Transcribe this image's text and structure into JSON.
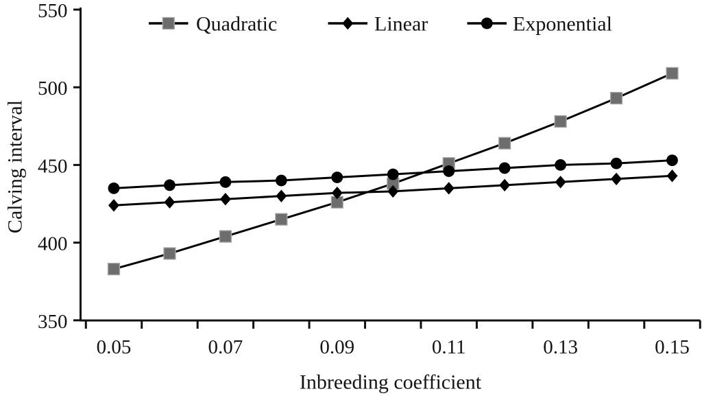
{
  "chart_data": {
    "type": "line",
    "title": "",
    "xlabel": "Inbreeding coefficient",
    "ylabel": "Calving interval",
    "x": [
      0.05,
      0.06,
      0.07,
      0.08,
      0.09,
      0.1,
      0.11,
      0.12,
      0.13,
      0.14,
      0.15
    ],
    "xtick_labels": [
      "0.05",
      "0.07",
      "0.09",
      "0.11",
      "0.13",
      "0.15"
    ],
    "yticks": [
      350,
      400,
      450,
      500,
      550
    ],
    "ylim": [
      350,
      550
    ],
    "grid": false,
    "legend_position": "top-center-inside",
    "line_color": "#000000",
    "series": [
      {
        "name": "Quadratic",
        "marker": "square",
        "marker_fill": "#6d6d6d",
        "marker_stroke": "#ababab",
        "values": [
          383,
          393,
          404,
          415,
          426,
          438,
          451,
          464,
          478,
          493,
          509
        ]
      },
      {
        "name": "Linear",
        "marker": "diamond",
        "marker_fill": "#000000",
        "marker_stroke": "#000000",
        "values": [
          424,
          426,
          428,
          430,
          432,
          433,
          435,
          437,
          439,
          441,
          443
        ]
      },
      {
        "name": "Exponential",
        "marker": "circle",
        "marker_fill": "#000000",
        "marker_stroke": "#000000",
        "values": [
          435,
          437,
          439,
          440,
          442,
          444,
          446,
          448,
          450,
          451,
          453
        ]
      }
    ]
  },
  "colors": {
    "background": "#ffffff",
    "axis": "#111111",
    "text": "#141414"
  }
}
